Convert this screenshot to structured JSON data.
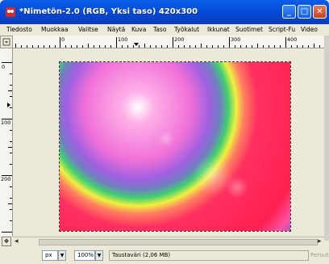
{
  "window": {
    "title": "*Nimetön-2.0 (RGB, Yksi taso) 420x300",
    "icon": "gimp-icon",
    "controls": [
      "minimize-icon",
      "maximize-icon",
      "close-icon"
    ]
  },
  "menubar": {
    "items": [
      "Tiedosto",
      "Muokkaa",
      "Valitse",
      "Näytä",
      "Kuva",
      "Taso",
      "Työkalut",
      "Ikkunat",
      "Suotimet",
      "Script-Fu",
      "Video"
    ]
  },
  "rulers": {
    "horizontal_labels": [
      "0",
      "100",
      "200",
      "300",
      "400"
    ],
    "vertical_labels": [
      "0",
      "100",
      "200"
    ]
  },
  "statusbar": {
    "unit": "px",
    "zoom": "100%",
    "message": "Taustaväri (2,06 MB)",
    "cancel_label": "Peruuta"
  },
  "colors": {
    "titlebar": "#0a5fe6",
    "chrome": "#ece9d8"
  }
}
